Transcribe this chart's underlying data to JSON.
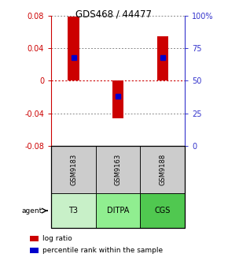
{
  "title": "GDS468 / 44477",
  "samples": [
    "GSM9183",
    "GSM9163",
    "GSM9188"
  ],
  "agents": [
    "T3",
    "DITPA",
    "CGS"
  ],
  "log_ratios": [
    0.079,
    -0.046,
    0.055
  ],
  "percentile_ranks_pct": [
    68,
    38,
    68
  ],
  "bar_color": "#cc0000",
  "percentile_color": "#0000cc",
  "ylim": [
    -0.08,
    0.08
  ],
  "yticks_left": [
    -0.08,
    -0.04,
    0,
    0.04,
    0.08
  ],
  "yticks_right_pct": [
    0,
    25,
    50,
    75,
    100
  ],
  "yticks_right_labels": [
    "0",
    "25",
    "50",
    "75",
    "100%"
  ],
  "agent_colors": [
    "#c8f0c8",
    "#90ee90",
    "#50c850"
  ],
  "gsm_bg": "#cccccc",
  "bar_width": 0.25,
  "percentile_marker_size": 4,
  "left_color": "#cc0000",
  "right_color": "#3333cc",
  "grid_color": "#888888",
  "zero_color": "#cc0000",
  "legend_ratio_color": "#cc0000",
  "legend_percentile_color": "#0000cc",
  "bg_color": "#ffffff"
}
